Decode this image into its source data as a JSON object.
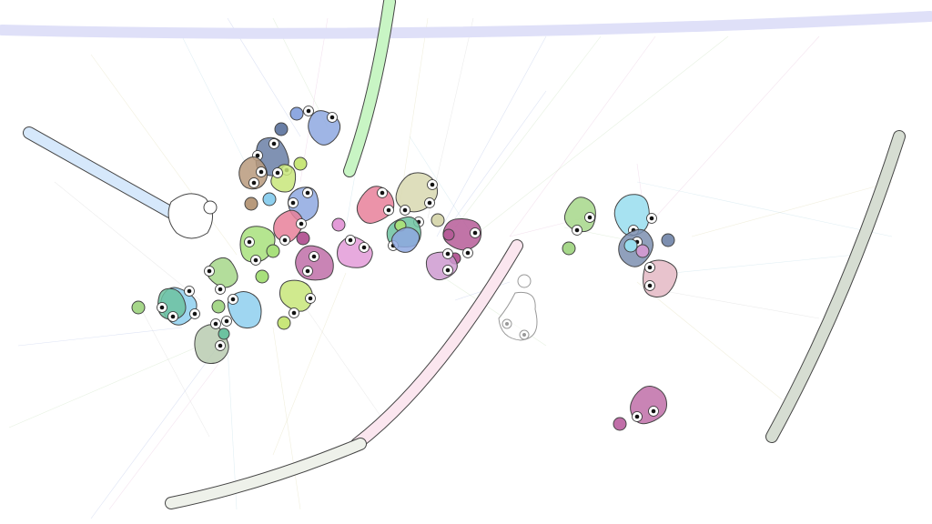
{
  "scene": {
    "background": "#ffffff",
    "palette": {
      "lavender": "#dfe0f8",
      "mint": "#c8f5c4",
      "sky": "#d6e8fb",
      "sage": "#d6ddd2",
      "pink": "#fbe6ef",
      "cream": "#eef1ea",
      "steel_blue": "#8ea8e0",
      "navy": "#6a7fa6",
      "olive": "#b0aa7a",
      "lime": "#a8e07c",
      "rose": "#e8809a",
      "khaki": "#d8d8b0",
      "teal": "#6cc2a0",
      "aqua": "#8ecfee",
      "magenta": "#c06ea8",
      "orchid": "#e39bd8",
      "mauve": "#ce9ad0",
      "plum": "#b65c98",
      "chartreuse": "#c8e67a",
      "leaf": "#a6d78a",
      "cyan": "#98ddee",
      "slate": "#7d8fb0",
      "blush": "#e4b8c4",
      "gray_green": "#b8cbb0",
      "tan": "#b89a7c",
      "outline": "#444444",
      "pupil": "#111111"
    },
    "elements": [
      "top-bar",
      "mint-bar",
      "sky-bar",
      "sage-bar",
      "pink-bar",
      "cream-bar",
      "creature-cluster",
      "ghost-creature",
      "right-cluster",
      "pink-loner"
    ]
  }
}
